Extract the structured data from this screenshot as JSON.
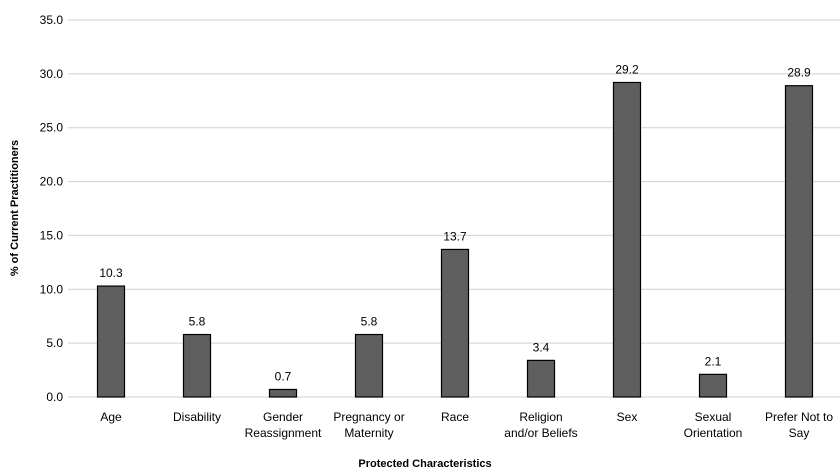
{
  "chart_data": {
    "type": "bar",
    "title": "",
    "xlabel": "Protected Characteristics",
    "ylabel": "% of Current Practitioners",
    "ylim": [
      0,
      35
    ],
    "ytick_step": 5,
    "ytick_labels": [
      "0.0",
      "5.0",
      "10.0",
      "15.0",
      "20.0",
      "25.0",
      "30.0",
      "35.0"
    ],
    "grid": true,
    "bar_color": "#5f5f5f",
    "categories": [
      [
        "Age"
      ],
      [
        "Disability"
      ],
      [
        "Gender",
        "Reassignment"
      ],
      [
        "Pregnancy or",
        "Maternity"
      ],
      [
        "Race"
      ],
      [
        "Religion",
        "and/or Beliefs"
      ],
      [
        "Sex"
      ],
      [
        "Sexual",
        "Orientation"
      ],
      [
        "Prefer Not to",
        "Say"
      ]
    ],
    "values": [
      10.3,
      5.8,
      0.7,
      5.8,
      13.7,
      3.4,
      29.2,
      2.1,
      28.9
    ],
    "data_labels": [
      "10.3",
      "5.8",
      "0.7",
      "5.8",
      "13.7",
      "3.4",
      "29.2",
      "2.1",
      "28.9"
    ]
  }
}
